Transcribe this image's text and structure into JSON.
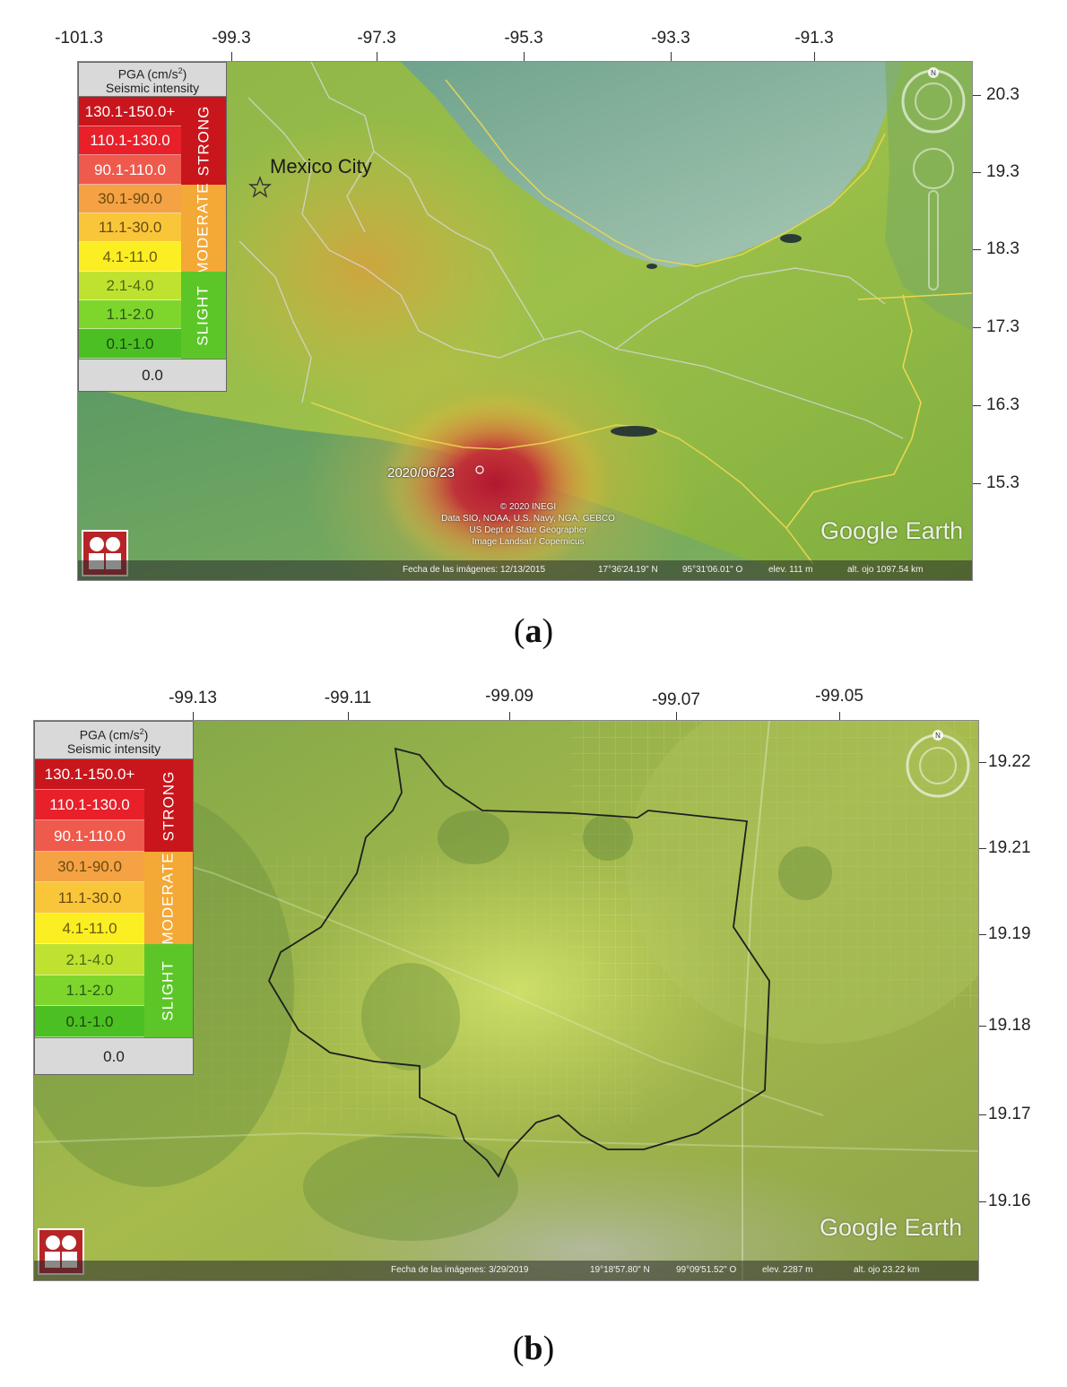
{
  "panels": [
    {
      "id": "a",
      "caption_open": "(",
      "caption_letter": "a",
      "caption_close": ")",
      "lon_ticks": [
        "-101.3",
        "-99.3",
        "-97.3",
        "-95.3",
        "-93.3",
        "-91.3"
      ],
      "lat_ticks": [
        "20.3",
        "19.3",
        "18.3",
        "17.3",
        "16.3",
        "15.3"
      ],
      "place_label": "Mexico City",
      "event_label": "2020/06/23",
      "credits": [
        "© 2020 INEGI",
        "Data SIO, NOAA, U.S. Navy, NGA, GEBCO",
        "US Dept of State Geographer",
        "Image Landsat / Copernicus"
      ],
      "status": {
        "image_date": "Fecha de las imágenes: 12/13/2015",
        "lat": "17°36'24.19\" N",
        "lon": "95°31'06.01\" O",
        "elev": "elev. 111 m",
        "eye_alt": "alt. ojo 1097.54 km"
      }
    },
    {
      "id": "b",
      "caption_open": "(",
      "caption_letter": "b",
      "caption_close": ")",
      "lon_ticks": [
        "-99.13",
        "-99.11",
        "-99.09",
        "-99.07",
        "-99.05"
      ],
      "lat_ticks": [
        "19.22",
        "19.21",
        "19.19",
        "19.18",
        "19.17",
        "19.16"
      ],
      "place_label": "",
      "event_label": "",
      "credits": [],
      "status": {
        "image_date": "Fecha de las imágenes: 3/29/2019",
        "lat": "19°18'57.80\" N",
        "lon": "99°09'51.52\" O",
        "elev": "elev. 2287 m",
        "eye_alt": "alt. ojo 23.22 km"
      }
    }
  ],
  "legend": {
    "title_line1": "PGA (cm/s",
    "title_sup": "2",
    "title_line1_end": ")",
    "title_line2": "Seismic intensity",
    "rows": [
      {
        "label": "130.1-150.0+",
        "color": "#c8161c"
      },
      {
        "label": "110.1-130.0",
        "color": "#e8202a"
      },
      {
        "label": "90.1-110.0",
        "color": "#ee5a4c"
      },
      {
        "label": "30.1-90.0",
        "color": "#f4a244"
      },
      {
        "label": "11.1-30.0",
        "color": "#f9c63a"
      },
      {
        "label": "4.1-11.0",
        "color": "#fbee22"
      },
      {
        "label": "2.1-4.0",
        "color": "#bfe230"
      },
      {
        "label": "1.1-2.0",
        "color": "#7ed62c"
      },
      {
        "label": "0.1-1.0",
        "color": "#4cc022"
      }
    ],
    "zero_label": "0.0",
    "categories": [
      {
        "label": "STRONG",
        "color": "#c8161c"
      },
      {
        "label": "MODERATE",
        "color": "#f4a836"
      },
      {
        "label": "SLIGHT",
        "color": "#5cc628"
      }
    ]
  },
  "google_earth_label": "Google Earth",
  "compass_letter": "N",
  "colors": {
    "land": "#8fbf45",
    "water": "#4b8f7e",
    "gulf": "#9bc3a2",
    "strong_red": "#b5142c",
    "moderate": "#e0a030"
  }
}
